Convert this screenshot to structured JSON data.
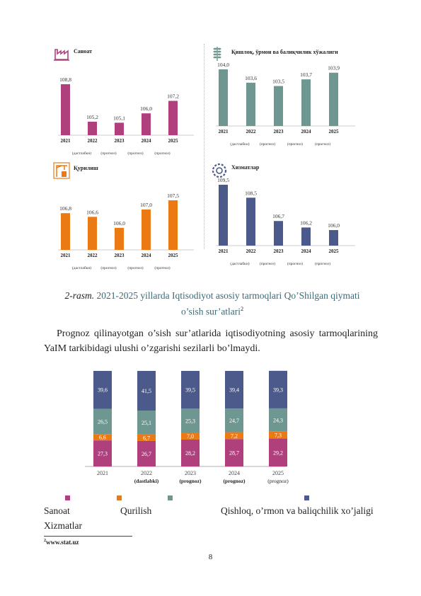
{
  "panels": [
    {
      "key": "industry",
      "title": "Санoат",
      "icon": "factory-icon",
      "color": "#b0407d",
      "years": [
        "2021",
        "2022",
        "2023",
        "2024",
        "2025"
      ],
      "values": [
        108.8,
        105.2,
        105.1,
        106.0,
        107.2
      ],
      "labels": [
        "108,8",
        "105,2",
        "105,1",
        "106,0",
        "107,2"
      ],
      "notes": [
        "(дастлабки)",
        "(прогноз)",
        "(прогноз)",
        "(прогноз)"
      ]
    },
    {
      "key": "agriculture",
      "title": "Қишлоқ, ўрмон ва балиқчилик хўжалиги",
      "icon": "wheat-icon",
      "color": "#6f9791",
      "years": [
        "2021",
        "2022",
        "2023",
        "2024",
        "2025"
      ],
      "values": [
        104.0,
        103.6,
        103.5,
        103.7,
        103.9
      ],
      "labels": [
        "104,0",
        "103,6",
        "103,5",
        "103,7",
        "103,9"
      ],
      "notes": [
        "(дастлабки)",
        "(прогноз)",
        "(прогноз)",
        "(прогноз)"
      ]
    },
    {
      "key": "construction",
      "title": "Қурилиш",
      "icon": "crane-icon",
      "color": "#ec7a14",
      "years": [
        "2021",
        "2022",
        "2023",
        "2024",
        "2025"
      ],
      "values": [
        106.8,
        106.6,
        106.0,
        107.0,
        107.5
      ],
      "labels": [
        "106,8",
        "106,6",
        "106,0",
        "107,0",
        "107,5"
      ],
      "notes": [
        "(дастлабки)",
        "(прогноз)",
        "(прогноз)",
        "(прогноз)"
      ]
    },
    {
      "key": "services",
      "title": "Хизматлар",
      "icon": "gear-icon",
      "color": "#4b5a8a",
      "years": [
        "2021",
        "2022",
        "2023",
        "2024",
        "2025"
      ],
      "values": [
        109.5,
        108.5,
        106.7,
        106.2,
        106.0
      ],
      "labels": [
        "109,5",
        "108,5",
        "106,7",
        "106,2",
        "106,0"
      ],
      "notes": [
        "(дастлабки)",
        "(прогноз)",
        "(прогноз)",
        "(прогноз)"
      ]
    }
  ],
  "caption": {
    "label": "2-rasm.",
    "line1": "2021-2025 yillarda Iqtisodiyot asosiy tarmoqlari Qo’Shilgan qiymati",
    "line2": "o’sish sur’atlari",
    "footnote_mark": "2"
  },
  "paragraph": {
    "line1": "Prognoz qilinayotgan o’sish sur’atlarida iqtisodiyotning asosiy tarmoqlarining",
    "line2": "YaIM tarkibidagi ulushi o’zgarishi sezilarli bo’lmaydi."
  },
  "chart_data": {
    "type": "bar",
    "stacked": true,
    "categories": [
      "2021",
      "2022",
      "2023",
      "2024",
      "2025"
    ],
    "category_notes": [
      "",
      "(dastlabki)",
      "(prognoz)",
      "(prognoz)",
      "(prognoz)"
    ],
    "series": [
      {
        "name": "Sanoat",
        "color": "#b0407d",
        "values": [
          27.3,
          26.7,
          28.2,
          28.7,
          29.2
        ],
        "labels": [
          "27,3",
          "26,7",
          "28,2",
          "28,7",
          "29,2"
        ]
      },
      {
        "name": "Qurilish",
        "color": "#ec7a14",
        "values": [
          6.6,
          6.7,
          7.0,
          7.2,
          7.3
        ],
        "labels": [
          "6,6",
          "6,7",
          "7,0",
          "7,2",
          "7,3"
        ]
      },
      {
        "name": "Qishloq, o’rmon va baliqchilik xo’jaligi",
        "color": "#6f9791",
        "values": [
          26.5,
          25.1,
          25.3,
          24.7,
          24.3
        ],
        "labels": [
          "26,5",
          "25,1",
          "25,3",
          "24,7",
          "24,3"
        ]
      },
      {
        "name": "Xizmatlar",
        "color": "#4b5a8a",
        "values": [
          39.6,
          41.5,
          39.5,
          39.4,
          39.3
        ],
        "labels": [
          "39,6",
          "41,5",
          "39,5",
          "39,4",
          "39,3"
        ]
      }
    ]
  },
  "legend": {
    "industry": "Sanoat",
    "construction": "Qurilish",
    "agriculture": "Qishloq, o’rmon va baliqchilik xo’jaligi",
    "services": "Xizmatlar"
  },
  "footnote": {
    "mark": "2",
    "text": "www.stat.uz"
  },
  "page_number": "8"
}
